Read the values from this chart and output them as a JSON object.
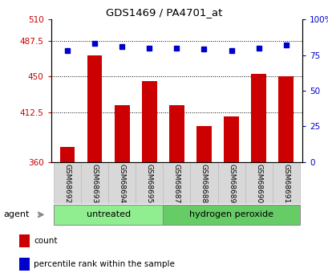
{
  "title": "GDS1469 / PA4701_at",
  "samples": [
    "GSM68692",
    "GSM68693",
    "GSM68694",
    "GSM68695",
    "GSM68687",
    "GSM68688",
    "GSM68689",
    "GSM68690",
    "GSM68691"
  ],
  "counts": [
    376,
    472,
    420,
    445,
    420,
    398,
    408,
    453,
    450
  ],
  "percentiles": [
    78,
    83,
    81,
    80,
    80,
    79,
    78,
    80,
    82
  ],
  "groups": [
    "untreated",
    "untreated",
    "untreated",
    "untreated",
    "hydrogen peroxide",
    "hydrogen peroxide",
    "hydrogen peroxide",
    "hydrogen peroxide",
    "hydrogen peroxide"
  ],
  "bar_color": "#cc0000",
  "dot_color": "#0000cc",
  "left_ylim": [
    360,
    510
  ],
  "left_yticks": [
    360,
    412.5,
    450,
    487.5,
    510
  ],
  "left_yticklabels": [
    "360",
    "412.5",
    "450",
    "487.5",
    "510"
  ],
  "right_ylim": [
    0,
    100
  ],
  "right_yticks": [
    0,
    25,
    50,
    75,
    100
  ],
  "right_yticklabels": [
    "0",
    "25",
    "50",
    "75",
    "100%"
  ],
  "grid_lines": [
    412.5,
    450,
    487.5
  ],
  "agent_label": "agent",
  "legend_count_label": "count",
  "legend_pct_label": "percentile rank within the sample",
  "sample_bg": "#d8d8d8",
  "group_color_untreated": "#90ee90",
  "group_color_peroxide": "#66cc66",
  "plot_bg": "#ffffff",
  "bar_color_red": "#cc0000",
  "bar_color_blue": "#0000cc"
}
